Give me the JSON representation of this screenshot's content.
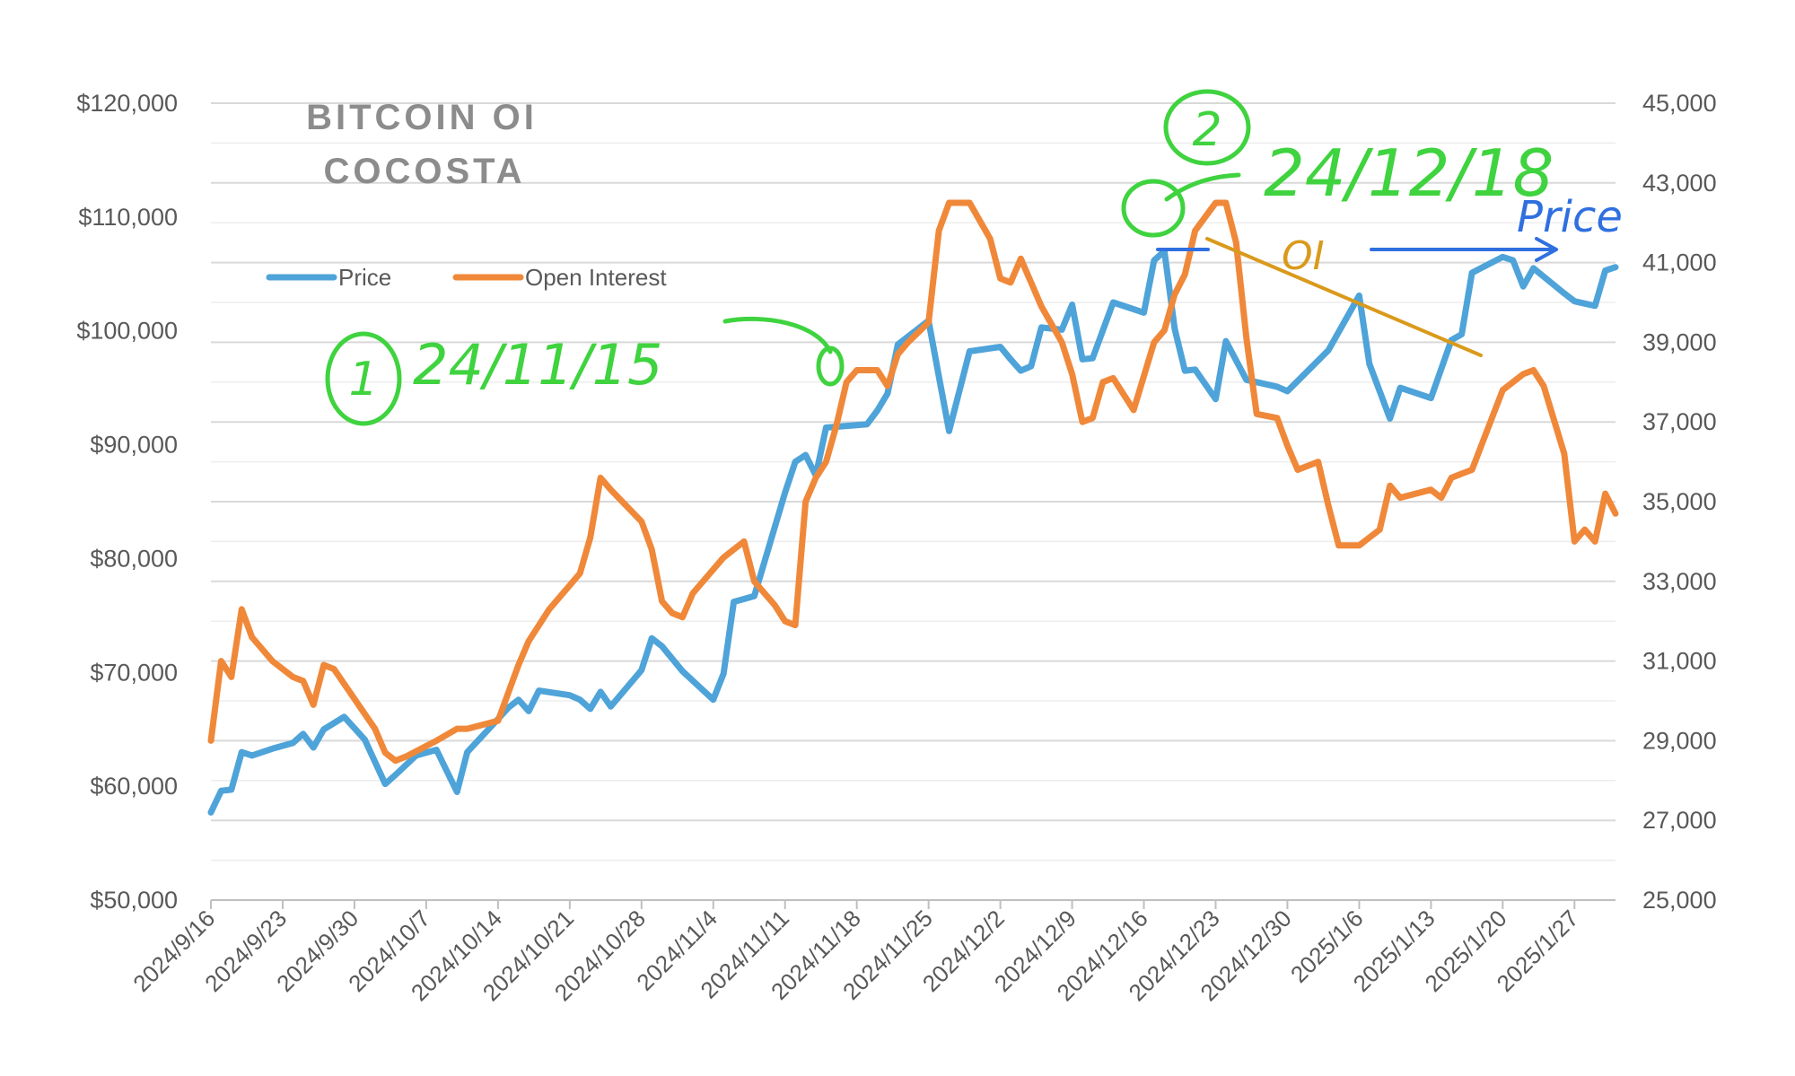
{
  "chart_data": {
    "type": "line",
    "title_lines": [
      "BITCOIN OI",
      "COCOSTA"
    ],
    "x_tick_labels": [
      "2024/9/16",
      "2024/9/23",
      "2024/9/30",
      "2024/10/7",
      "2024/10/14",
      "2024/10/21",
      "2024/10/28",
      "2024/11/4",
      "2024/11/11",
      "2024/11/18",
      "2024/11/25",
      "2024/12/2",
      "2024/12/9",
      "2024/12/16",
      "2024/12/23",
      "2024/12/30",
      "2025/1/6",
      "2025/1/13",
      "2025/1/20",
      "2025/1/27"
    ],
    "x_range": [
      "2024/9/16",
      "2025/1/31"
    ],
    "y_left": {
      "ylim": [
        50000,
        120000
      ],
      "tick_labels": [
        "$50,000",
        "$60,000",
        "$70,000",
        "$80,000",
        "$90,000",
        "$100,000",
        "$110,000",
        "$120,000"
      ]
    },
    "y_right": {
      "ylim": [
        25000,
        45000
      ],
      "tick_labels": [
        "25,000",
        "27,000",
        "29,000",
        "31,000",
        "33,000",
        "35,000",
        "37,000",
        "39,000",
        "41,000",
        "43,000",
        "45,000"
      ]
    },
    "grid": true,
    "legend_position": "top-left",
    "series": [
      {
        "name": "Price",
        "axis": "left",
        "color": "#4ea3d9",
        "x": [
          "2024/9/16",
          "2024/9/17",
          "2024/9/18",
          "2024/9/19",
          "2024/9/20",
          "2024/9/22",
          "2024/9/24",
          "2024/9/25",
          "2024/9/26",
          "2024/9/27",
          "2024/9/29",
          "2024/10/1",
          "2024/10/3",
          "2024/10/4",
          "2024/10/6",
          "2024/10/8",
          "2024/10/10",
          "2024/10/11",
          "2024/10/14",
          "2024/10/15",
          "2024/10/16",
          "2024/10/17",
          "2024/10/18",
          "2024/10/21",
          "2024/10/22",
          "2024/10/23",
          "2024/10/24",
          "2024/10/25",
          "2024/10/28",
          "2024/10/29",
          "2024/10/30",
          "2024/11/1",
          "2024/11/4",
          "2024/11/5",
          "2024/11/6",
          "2024/11/8",
          "2024/11/11",
          "2024/11/12",
          "2024/11/13",
          "2024/11/14",
          "2024/11/15",
          "2024/11/19",
          "2024/11/20",
          "2024/11/21",
          "2024/11/22",
          "2024/11/25",
          "2024/11/26",
          "2024/11/27",
          "2024/11/29",
          "2024/12/2",
          "2024/12/3",
          "2024/12/4",
          "2024/12/5",
          "2024/12/6",
          "2024/12/8",
          "2024/12/9",
          "2024/12/10",
          "2024/12/11",
          "2024/12/13",
          "2024/12/16",
          "2024/12/17",
          "2024/12/18",
          "2024/12/19",
          "2024/12/20",
          "2024/12/21",
          "2024/12/23",
          "2024/12/24",
          "2024/12/26",
          "2024/12/29",
          "2024/12/30",
          "2025/1/1",
          "2025/1/3",
          "2025/1/6",
          "2025/1/7",
          "2025/1/9",
          "2025/1/10",
          "2025/1/13",
          "2025/1/15",
          "2025/1/16",
          "2025/1/17",
          "2025/1/20",
          "2025/1/21",
          "2025/1/22",
          "2025/1/23",
          "2025/1/26",
          "2025/1/27",
          "2025/1/29",
          "2025/1/30",
          "2025/1/31"
        ],
        "values": [
          57700,
          59600,
          59700,
          63000,
          62700,
          63300,
          63800,
          64600,
          63400,
          65000,
          66100,
          64100,
          60200,
          61000,
          62700,
          63200,
          59500,
          63000,
          65900,
          66900,
          67600,
          66600,
          68400,
          68000,
          67600,
          66800,
          68300,
          67000,
          70200,
          73000,
          72300,
          70100,
          67600,
          69900,
          76200,
          76700,
          85800,
          88500,
          89100,
          87300,
          91500,
          91800,
          93000,
          94500,
          98800,
          100900,
          96000,
          91200,
          98200,
          98600,
          97500,
          96500,
          96900,
          100300,
          100100,
          102300,
          97500,
          97600,
          102500,
          101600,
          106200,
          107000,
          100200,
          96500,
          96600,
          94000,
          99100,
          95700,
          95100,
          94700,
          96500,
          98300,
          103100,
          97100,
          92300,
          95000,
          94100,
          99200,
          99700,
          105100,
          106500,
          106200,
          103900,
          105500,
          103300,
          102600,
          102200,
          105300,
          105600
        ]
      },
      {
        "name": "Open Interest",
        "axis": "right",
        "color": "#f0883a",
        "x": [
          "2024/9/16",
          "2024/9/17",
          "2024/9/18",
          "2024/9/19",
          "2024/9/20",
          "2024/9/22",
          "2024/9/24",
          "2024/9/25",
          "2024/9/26",
          "2024/9/27",
          "2024/9/28",
          "2024/10/2",
          "2024/10/3",
          "2024/10/4",
          "2024/10/5",
          "2024/10/8",
          "2024/10/10",
          "2024/10/11",
          "2024/10/14",
          "2024/10/16",
          "2024/10/17",
          "2024/10/19",
          "2024/10/22",
          "2024/10/23",
          "2024/10/24",
          "2024/10/25",
          "2024/10/28",
          "2024/10/29",
          "2024/10/30",
          "2024/10/31",
          "2024/11/1",
          "2024/11/2",
          "2024/11/5",
          "2024/11/6",
          "2024/11/7",
          "2024/11/8",
          "2024/11/10",
          "2024/11/11",
          "2024/11/12",
          "2024/11/13",
          "2024/11/14",
          "2024/11/15",
          "2024/11/16",
          "2024/11/17",
          "2024/11/18",
          "2024/11/20",
          "2024/11/21",
          "2024/11/22",
          "2024/11/23",
          "2024/11/25",
          "2024/11/26",
          "2024/11/27",
          "2024/11/29",
          "2024/12/1",
          "2024/12/2",
          "2024/12/3",
          "2024/12/4",
          "2024/12/6",
          "2024/12/8",
          "2024/12/9",
          "2024/12/10",
          "2024/12/11",
          "2024/12/12",
          "2024/12/13",
          "2024/12/15",
          "2024/12/17",
          "2024/12/18",
          "2024/12/19",
          "2024/12/20",
          "2024/12/21",
          "2024/12/23",
          "2024/12/24",
          "2024/12/25",
          "2024/12/26",
          "2024/12/27",
          "2024/12/29",
          "2024/12/30",
          "2024/12/31",
          "2025/1/2",
          "2025/1/3",
          "2025/1/4",
          "2025/1/6",
          "2025/1/7",
          "2025/1/8",
          "2025/1/9",
          "2025/1/10",
          "2025/1/13",
          "2025/1/14",
          "2025/1/15",
          "2025/1/16",
          "2025/1/17",
          "2025/1/20",
          "2025/1/22",
          "2025/1/23",
          "2025/1/24",
          "2025/1/26",
          "2025/1/27",
          "2025/1/28",
          "2025/1/29",
          "2025/1/30",
          "2025/1/31"
        ],
        "values": [
          29000,
          31000,
          30600,
          32300,
          31600,
          31000,
          30600,
          30500,
          29900,
          30900,
          30800,
          29300,
          28700,
          28500,
          28600,
          29000,
          29300,
          29300,
          29500,
          30900,
          31500,
          32300,
          33200,
          34100,
          35600,
          35300,
          34500,
          33800,
          32500,
          32200,
          32100,
          32700,
          33600,
          33800,
          34000,
          33000,
          32400,
          32000,
          31900,
          35000,
          35600,
          36000,
          36900,
          38000,
          38300,
          38300,
          37900,
          38700,
          39000,
          39500,
          41800,
          42500,
          42500,
          41600,
          40600,
          40500,
          41100,
          39900,
          39000,
          38200,
          37000,
          37100,
          38000,
          38100,
          37300,
          39000,
          39300,
          40200,
          40700,
          41800,
          42500,
          42500,
          41500,
          39100,
          37200,
          37100,
          36400,
          35800,
          36000,
          34900,
          33900,
          33900,
          34100,
          34300,
          35400,
          35100,
          35300,
          35100,
          35600,
          35700,
          35800,
          37800,
          38200,
          38300,
          37900,
          36200,
          34000,
          34300,
          34000,
          35200,
          34700
        ]
      }
    ],
    "annotations": {
      "note1_number": "1",
      "note1_date": "24/11/15",
      "note2_number": "2",
      "note2_date": "24/12/18",
      "oi_label": "OI",
      "price_label": "Price"
    }
  }
}
